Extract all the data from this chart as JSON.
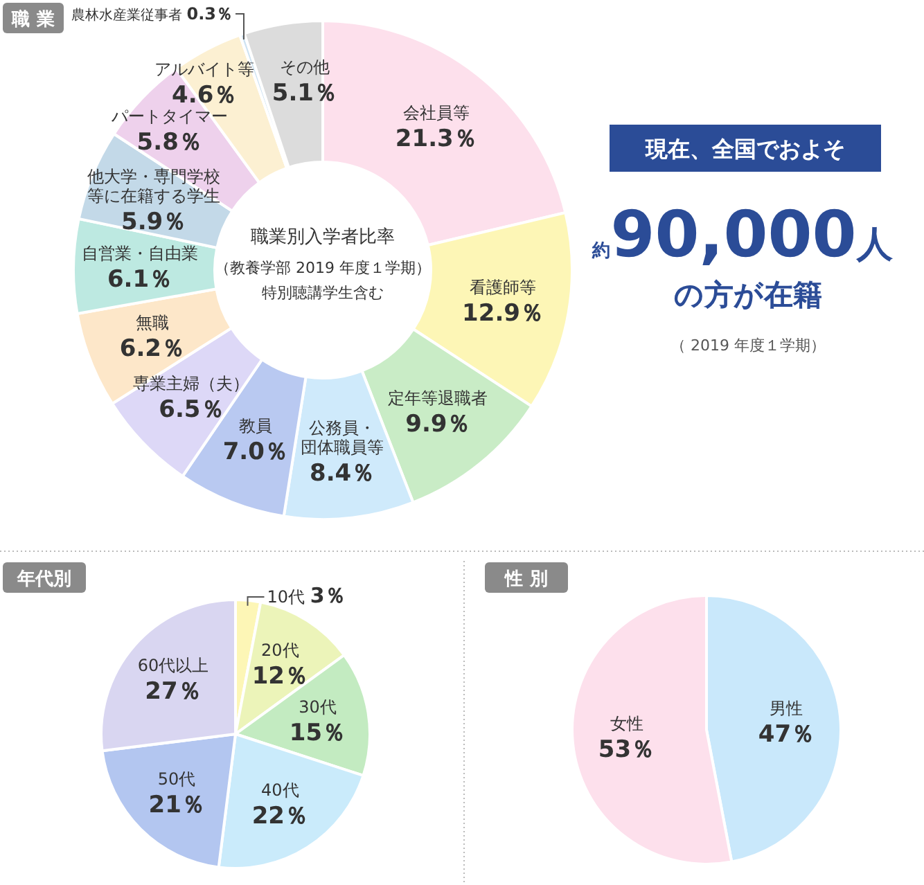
{
  "chart_data": [
    {
      "type": "donut",
      "title": "職 業",
      "subtitle": "職業別入学者比率",
      "annotations": [
        "（教養学部 2019 年度１学期）",
        "特別聴講学生含む"
      ],
      "categories": [
        "会社員等",
        "看護師等",
        "定年等退職者",
        "公務員・団体職員等",
        "教員",
        "専業主婦（夫）",
        "無職",
        "自営業・自由業",
        "他大学・専門学校等に在籍する学生",
        "パートタイマー",
        "アルバイト等",
        "農林水産業従事者",
        "その他"
      ],
      "values": [
        21.3,
        12.9,
        9.9,
        8.4,
        7.0,
        6.5,
        6.2,
        6.1,
        5.9,
        5.8,
        4.6,
        0.3,
        5.1
      ],
      "value_labels": [
        "21.3％",
        "12.9％",
        "9.9％",
        "8.4％",
        "7.0％",
        "6.5％",
        "6.2％",
        "6.1％",
        "5.9％",
        "5.8％",
        "4.6％",
        "0.3％",
        "5.1％"
      ],
      "colors": [
        "#fde0ec",
        "#fdf6b6",
        "#c9ecc6",
        "#cfeafb",
        "#b9c9f1",
        "#ddd8f7",
        "#fde7c9",
        "#bde9e1",
        "#c3d9e8",
        "#eed1ec",
        "#fcf0d2",
        "#cfe3f2",
        "#dcdcdc"
      ]
    },
    {
      "type": "other",
      "title": "現在、全国でおよそ",
      "annotations": [
        "約",
        "90,000",
        "人",
        "の方が在籍",
        "（ 2019 年度１学期）"
      ]
    },
    {
      "type": "pie",
      "title": "年代別",
      "categories": [
        "10代",
        "20代",
        "30代",
        "40代",
        "50代",
        "60代以上"
      ],
      "values": [
        3,
        12,
        15,
        22,
        21,
        27
      ],
      "value_labels": [
        "3％",
        "12％",
        "15％",
        "22％",
        "21％",
        "27％"
      ],
      "colors": [
        "#fdf6b6",
        "#ecf4b9",
        "#c3ebc1",
        "#caebfb",
        "#b3c6f0",
        "#d9d6f1"
      ]
    },
    {
      "type": "pie",
      "title": "性 別",
      "categories": [
        "男性",
        "女性"
      ],
      "values": [
        47,
        53
      ],
      "value_labels": [
        "47％",
        "53％"
      ],
      "colors": [
        "#c9e8fb",
        "#fde0ec"
      ]
    }
  ]
}
